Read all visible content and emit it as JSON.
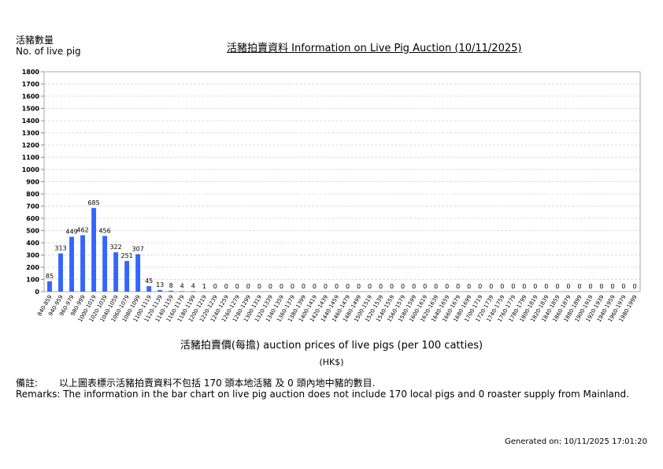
{
  "header": {
    "ylabel_zh": "活豬數量",
    "ylabel_en": "No. of live pig",
    "title": "活豬拍賣資料 Information on Live Pig Auction (10/11/2025)"
  },
  "chart_data": {
    "type": "bar",
    "title": "活豬拍賣資料 Information on Live Pig Auction (10/11/2025)",
    "ylabel": "活豬數量 No. of live pig",
    "xlabel": "活豬拍賣價(每擔) auction prices of live pigs (per 100 catties)",
    "xunit": "(HK$)",
    "ylim": [
      0,
      1800
    ],
    "ytick_step": 100,
    "grid": true,
    "bar_color": "#3366ff",
    "categories": [
      "840-859",
      "940-959",
      "960-979",
      "980-999",
      "1000-1019",
      "1020-1039",
      "1040-1059",
      "1060-1079",
      "1080-1099",
      "1100-1119",
      "1120-1139",
      "1140-1159",
      "1160-1179",
      "1180-1199",
      "1200-1219",
      "1220-1239",
      "1240-1259",
      "1260-1279",
      "1280-1299",
      "1300-1319",
      "1320-1339",
      "1340-1359",
      "1360-1379",
      "1380-1399",
      "1400-1419",
      "1420-1439",
      "1440-1459",
      "1460-1479",
      "1480-1499",
      "1500-1519",
      "1520-1539",
      "1540-1559",
      "1560-1579",
      "1580-1599",
      "1600-1619",
      "1620-1639",
      "1640-1659",
      "1660-1679",
      "1680-1699",
      "1700-1719",
      "1720-1739",
      "1740-1759",
      "1760-1779",
      "1780-1799",
      "1800-1819",
      "1820-1839",
      "1840-1859",
      "1860-1879",
      "1880-1899",
      "1900-1919",
      "1920-1939",
      "1940-1959",
      "1960-1979",
      "1980-1999"
    ],
    "values": [
      85,
      313,
      449,
      462,
      685,
      456,
      322,
      251,
      307,
      45,
      13,
      8,
      4,
      4,
      1,
      0,
      0,
      0,
      0,
      0,
      0,
      0,
      0,
      0,
      0,
      0,
      0,
      0,
      0,
      0,
      0,
      0,
      0,
      0,
      0,
      0,
      0,
      0,
      0,
      0,
      0,
      0,
      0,
      0,
      0,
      0,
      0,
      0,
      0,
      0,
      0,
      0,
      0,
      0
    ]
  },
  "remarks": {
    "label_zh": "備註:",
    "text_zh": "以上圖表標示活豬拍賣資料不包括 170 頭本地活豬 及 0 頭內地中豬的數目.",
    "text_en": "Remarks: The information in the bar chart on live pig auction does not include 170 local pigs and 0 roaster supply from Mainland."
  },
  "footer": {
    "generated": "Generated on: 10/11/2025 17:01:20"
  }
}
